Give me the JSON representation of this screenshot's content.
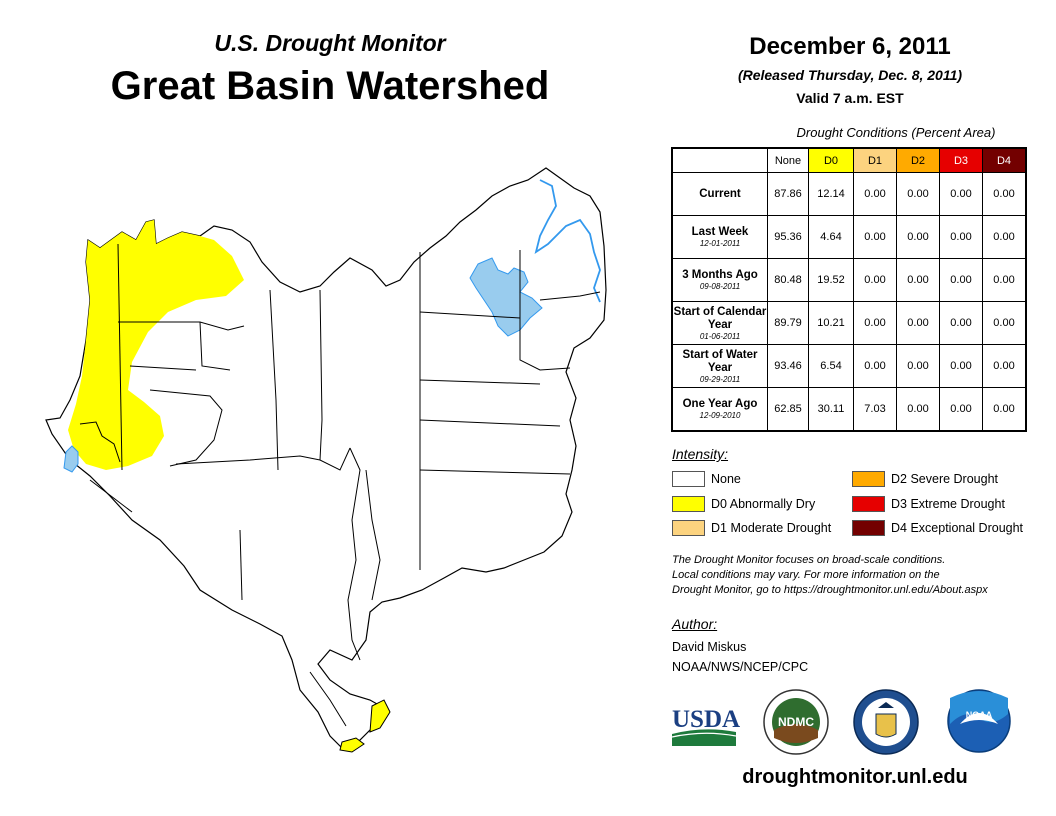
{
  "titles": {
    "subtitle": "U.S. Drought Monitor",
    "main": "Great Basin Watershed",
    "date": "December 6, 2011",
    "released": "(Released Thursday, Dec. 8, 2011)",
    "valid": "Valid 7 a.m. EST"
  },
  "table": {
    "caption": "Drought Conditions (Percent Area)",
    "headers": [
      "None",
      "D0",
      "D1",
      "D2",
      "D3",
      "D4"
    ],
    "header_colors": [
      "#ffffff",
      "#ffff00",
      "#fcd37f",
      "#ffaa00",
      "#e60000",
      "#730000"
    ],
    "header_text_colors": [
      "#000000",
      "#000000",
      "#000000",
      "#000000",
      "#ffffff",
      "#ffffff"
    ],
    "rows": [
      {
        "label": "Current",
        "sub": "",
        "values": [
          "87.86",
          "12.14",
          "0.00",
          "0.00",
          "0.00",
          "0.00"
        ]
      },
      {
        "label": "Last Week",
        "sub": "12-01-2011",
        "values": [
          "95.36",
          "4.64",
          "0.00",
          "0.00",
          "0.00",
          "0.00"
        ]
      },
      {
        "label": "3 Months Ago",
        "sub": "09-08-2011",
        "values": [
          "80.48",
          "19.52",
          "0.00",
          "0.00",
          "0.00",
          "0.00"
        ]
      },
      {
        "label": "Start of Calendar Year",
        "sub": "01-06-2011",
        "values": [
          "89.79",
          "10.21",
          "0.00",
          "0.00",
          "0.00",
          "0.00"
        ]
      },
      {
        "label": "Start of Water Year",
        "sub": "09-29-2011",
        "values": [
          "93.46",
          "6.54",
          "0.00",
          "0.00",
          "0.00",
          "0.00"
        ]
      },
      {
        "label": "One Year Ago",
        "sub": "12-09-2010",
        "values": [
          "62.85",
          "30.11",
          "7.03",
          "0.00",
          "0.00",
          "0.00"
        ]
      }
    ]
  },
  "legend": {
    "title": "Intensity:",
    "items": [
      {
        "label": "None",
        "color": "#ffffff"
      },
      {
        "label": "D0 Abnormally Dry",
        "color": "#ffff00"
      },
      {
        "label": "D1 Moderate Drought",
        "color": "#fcd37f"
      },
      {
        "label": "D2 Severe Drought",
        "color": "#ffaa00"
      },
      {
        "label": "D3 Extreme Drought",
        "color": "#e60000"
      },
      {
        "label": "D4 Exceptional Drought",
        "color": "#730000"
      }
    ]
  },
  "note": {
    "line1": "The Drought Monitor focuses on broad-scale conditions.",
    "line2": "Local conditions may vary. For more information on the",
    "line3": "Drought Monitor, go to https://droughtmonitor.unl.edu/About.aspx"
  },
  "author": {
    "title": "Author:",
    "name": "David Miskus",
    "org": "NOAA/NWS/NCEP/CPC"
  },
  "logos": {
    "usda": "USDA",
    "ndmc": "NDMC",
    "noaa": "NOAA"
  },
  "map_colors": {
    "d0": "#ffff00",
    "water": "#99ccee",
    "river": "#3399ee"
  },
  "url": "droughtmonitor.unl.edu"
}
